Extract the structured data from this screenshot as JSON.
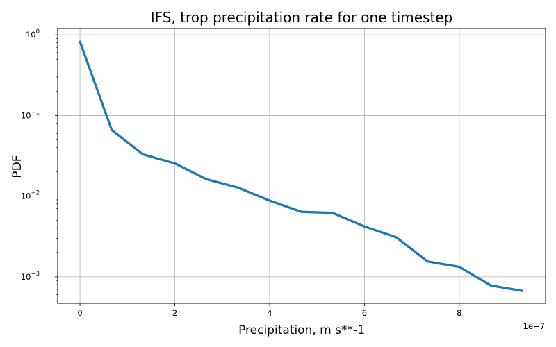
{
  "chart_data": {
    "type": "line",
    "title": "IFS, trop precipitation rate for one timestep",
    "xlabel": "Precipitation, m s**-1",
    "ylabel": "PDF",
    "x_offset_label": "1e−7",
    "yscale": "log",
    "grid": true,
    "xlim": [
      -0.47,
      9.82
    ],
    "ylim": [
      0.00047,
      1.2
    ],
    "x_ticks": [
      {
        "value": 0,
        "label": "0"
      },
      {
        "value": 2,
        "label": "2"
      },
      {
        "value": 4,
        "label": "4"
      },
      {
        "value": 6,
        "label": "6"
      },
      {
        "value": 8,
        "label": "8"
      }
    ],
    "y_ticks": [
      {
        "value": 1,
        "label": "10",
        "exp": "0"
      },
      {
        "value": 0.1,
        "label": "10",
        "exp": "−1"
      },
      {
        "value": 0.01,
        "label": "10",
        "exp": "−2"
      },
      {
        "value": 0.001,
        "label": "10",
        "exp": "−3"
      }
    ],
    "series": [
      {
        "color": "#1f77b4",
        "x": [
          0,
          0.67,
          1.33,
          2.0,
          2.67,
          3.33,
          4.0,
          4.67,
          5.33,
          6.0,
          6.67,
          7.33,
          8.0,
          8.67,
          9.33
        ],
        "y": [
          0.82,
          0.066,
          0.033,
          0.0255,
          0.0162,
          0.0128,
          0.0088,
          0.0064,
          0.0062,
          0.0042,
          0.0031,
          0.00155,
          0.00133,
          0.00078,
          0.00067
        ]
      }
    ]
  }
}
